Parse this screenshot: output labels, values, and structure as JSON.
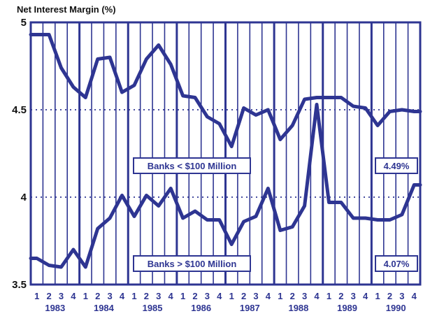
{
  "chart_data": {
    "type": "line",
    "title": "Net Interest Margin (%)",
    "ylim": [
      3.5,
      5
    ],
    "yticks": [
      "3.5",
      "4",
      "4.5",
      "5"
    ],
    "ytick_values": [
      3.5,
      4,
      4.5,
      5
    ],
    "dotted_gridlines_at": [
      4,
      4.5
    ],
    "quarters": [
      "1",
      "2",
      "3",
      "4"
    ],
    "years": [
      "1983",
      "1984",
      "1985",
      "1986",
      "1987",
      "1988",
      "1989",
      "1990"
    ],
    "grid": true,
    "series": [
      {
        "name": "Banks < $100 Million",
        "end_label": "4.49%",
        "values": [
          4.93,
          4.93,
          4.74,
          4.63,
          4.57,
          4.79,
          4.8,
          4.6,
          4.64,
          4.79,
          4.87,
          4.76,
          4.58,
          4.57,
          4.46,
          4.42,
          4.29,
          4.51,
          4.47,
          4.5,
          4.33,
          4.41,
          4.56,
          4.57,
          4.57,
          4.57,
          4.52,
          4.51,
          4.41,
          4.49,
          4.5,
          4.49
        ]
      },
      {
        "name": "Banks > $100 Million",
        "end_label": "4.07%",
        "values": [
          3.65,
          3.61,
          3.6,
          3.7,
          3.6,
          3.82,
          3.88,
          4.01,
          3.89,
          4.01,
          3.95,
          4.05,
          3.88,
          3.92,
          3.87,
          3.87,
          3.73,
          3.86,
          3.89,
          4.05,
          3.81,
          3.83,
          3.95,
          4.53,
          3.97,
          3.97,
          3.88,
          3.88,
          3.87,
          3.87,
          3.9,
          4.07
        ]
      }
    ],
    "colors": {
      "line": "#2e3592",
      "grid": "#2e3592",
      "gridline": "#2e3592"
    }
  }
}
